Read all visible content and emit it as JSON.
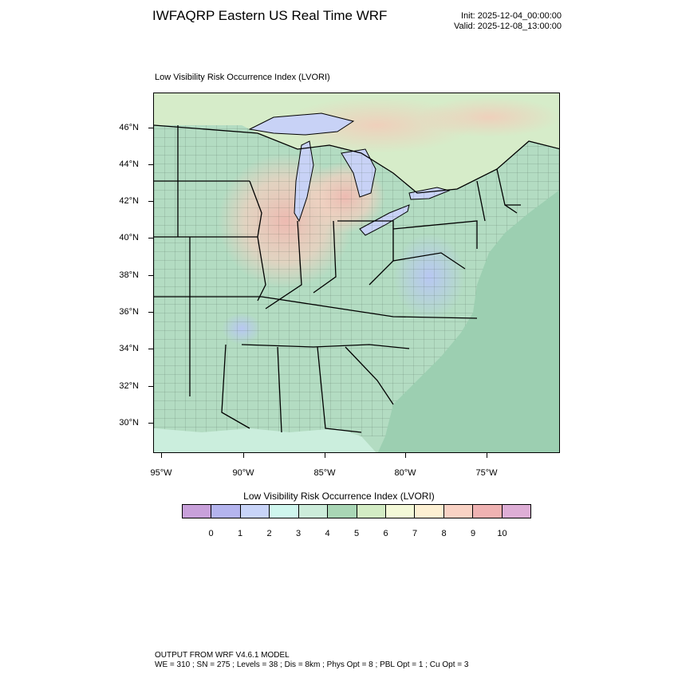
{
  "header": {
    "title": "IWFAQRP Eastern US Real Time WRF",
    "init": "Init: 2025-12-04_00:00:00",
    "valid": "Valid: 2025-12-08_13:00:00"
  },
  "plot": {
    "subtitle": "Low Visibility Risk Occurrence Index   (LVORI)"
  },
  "map": {
    "lat_labels": [
      "46°N",
      "44°N",
      "42°N",
      "40°N",
      "38°N",
      "36°N",
      "34°N",
      "32°N",
      "30°N"
    ],
    "lon_labels": [
      "95°W",
      "90°W",
      "85°W",
      "80°W",
      "75°W"
    ],
    "colors": {
      "background_low": "#c9ecd9",
      "midwest_high": "#f2c4bc",
      "mid_atlantic_low": "#c4cff5",
      "ocean": "#cdeee0",
      "land_mid": "#a9d8b8",
      "canada_mix": "#d9eecf"
    }
  },
  "legend": {
    "title": "Low Visibility Risk Occurrence Index  (LVORI)",
    "labels": [
      "0",
      "1",
      "2",
      "3",
      "4",
      "5",
      "6",
      "7",
      "8",
      "9",
      "10"
    ],
    "colors": [
      "#c8a0da",
      "#b4b4ee",
      "#c8d4f8",
      "#cff6ee",
      "#ccecda",
      "#a9d6b5",
      "#d3ecc4",
      "#f4f9d8",
      "#fdf0d2",
      "#f9d2c4",
      "#efb2b2",
      "#deaed6"
    ]
  },
  "footer": {
    "line1": "OUTPUT FROM WRF V4.6.1 MODEL",
    "line2": "WE = 310 ; SN = 275 ; Levels = 38 ; Dis = 8km ; Phys Opt = 8 ; PBL Opt = 1 ; Cu Opt = 3"
  }
}
